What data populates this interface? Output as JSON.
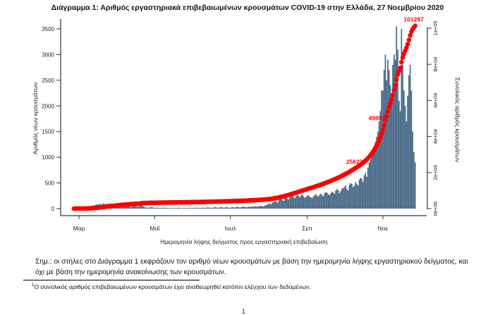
{
  "chart_data": {
    "type": "bar+line",
    "title": "Διάγραμμα 1: Αριθμός εργαστηριακά επιβεβαιωμένων κρουσμάτων COVID-19 στην Ελλάδα, 27 Νοεμβρίου 2020",
    "xlabel": "Ημερομηνία λήψης δείγματος προς εργαστηριακή επιβεβαίωση",
    "ylabel": "Αριθμός νέων κρουσμάτων",
    "y2label": "Συνολικός αριθμός κρουσμάτων",
    "x_start": "2020-02-26",
    "x_end": "2020-11-27",
    "x_ticks": [
      {
        "label": "Μαρ",
        "day": 4
      },
      {
        "label": "Μαΐ",
        "day": 65
      },
      {
        "label": "Ιουλ",
        "day": 126
      },
      {
        "label": "Σεπ",
        "day": 188
      },
      {
        "label": "Νοε",
        "day": 249
      }
    ],
    "ylim": [
      0,
      3500
    ],
    "y_ticks": [
      "0",
      "500",
      "1000",
      "1500",
      "2000",
      "2500",
      "3000",
      "3500"
    ],
    "y2lim": [
      0,
      100000
    ],
    "y2_ticks": [
      "0e+00",
      "2e+04",
      "4e+04",
      "6e+04",
      "8e+04",
      "1e+05"
    ],
    "bar_color": "#4a6a88",
    "line_color": "#ff0000",
    "series": [
      {
        "name": "Νέα κρούσματα (ημερήσια)",
        "type": "bar",
        "values": [
          1,
          2,
          3,
          2,
          5,
          8,
          10,
          12,
          15,
          20,
          22,
          25,
          30,
          40,
          50,
          60,
          55,
          70,
          80,
          75,
          85,
          90,
          70,
          95,
          100,
          80,
          90,
          95,
          85,
          100,
          90,
          80,
          70,
          85,
          90,
          80,
          90,
          70,
          100,
          60,
          50,
          80,
          60,
          70,
          90,
          40,
          30,
          50,
          60,
          70,
          40,
          50,
          30,
          60,
          120,
          150,
          40,
          30,
          20,
          20,
          15,
          20,
          30,
          25,
          20,
          15,
          10,
          20,
          15,
          12,
          10,
          15,
          20,
          10,
          15,
          12,
          10,
          8,
          15,
          12,
          10,
          15,
          10,
          12,
          20,
          15,
          10,
          8,
          12,
          10,
          15,
          10,
          12,
          20,
          10,
          12,
          10,
          15,
          12,
          20,
          15,
          10,
          12,
          15,
          20,
          10,
          15,
          20,
          25,
          15,
          10,
          20,
          15,
          25,
          30,
          20,
          15,
          20,
          25,
          30,
          20,
          15,
          25,
          30,
          20,
          15,
          20,
          25,
          30,
          20,
          25,
          30,
          35,
          25,
          20,
          30,
          35,
          40,
          30,
          25,
          35,
          40,
          30,
          45,
          35,
          40,
          50,
          40,
          35,
          45,
          50,
          55,
          40,
          45,
          60,
          70,
          80,
          90,
          100,
          80,
          120,
          130,
          150,
          140,
          110,
          160,
          180,
          200,
          170,
          150,
          230,
          240,
          200,
          180,
          220,
          250,
          260,
          230,
          200,
          240,
          270,
          250,
          220,
          260,
          280,
          240,
          210,
          230,
          250,
          260,
          230,
          220,
          200,
          240,
          260,
          280,
          250,
          230,
          270,
          290,
          260,
          240,
          300,
          320,
          310,
          280,
          260,
          300,
          330,
          310,
          290,
          350,
          380,
          360,
          300,
          340,
          390,
          400,
          420,
          450,
          380,
          350,
          460,
          500,
          480,
          420,
          440,
          520,
          480,
          450,
          560,
          600,
          580,
          520,
          650,
          700,
          620,
          800,
          900,
          950,
          1000,
          1100,
          1200,
          1300,
          1400,
          1500,
          1700,
          1900,
          2300,
          2300,
          2700,
          3000,
          2500,
          2900,
          2700,
          2400,
          2200,
          2800,
          3000,
          2900,
          3550,
          3100,
          2100,
          1900,
          3500,
          2800,
          2300,
          2000,
          1700,
          2200,
          2600,
          2800,
          2300,
          1500,
          1100,
          900
        ]
      },
      {
        "name": "Συνολικός αριθμός κρουσμάτων (σωρευτικός)",
        "type": "line",
        "axis": "right",
        "final": 101287
      }
    ],
    "annotations": [
      "25623",
      "49891",
      "101287"
    ],
    "annotation_values": [
      25623,
      49891,
      101287
    ]
  },
  "note": "Σημ.: οι στήλες στο Διάγραμμα 1 εκφράζουν τον αριθμό νέων κρουσμάτων με βάση την ημερομηνία λήψης εργαστηριακού δείγματος, και όχι με βάση την ημερομηνία ανακοίνωσης των κρουσμάτων.",
  "footnote_mark": "1",
  "footnote": "Ο συνολικός αριθμός επιβεβαιωμένων κρουσμάτων έχει αναθεωρηθεί κατόπιν ελέγχου των δεδομένων.",
  "page_number": "1"
}
